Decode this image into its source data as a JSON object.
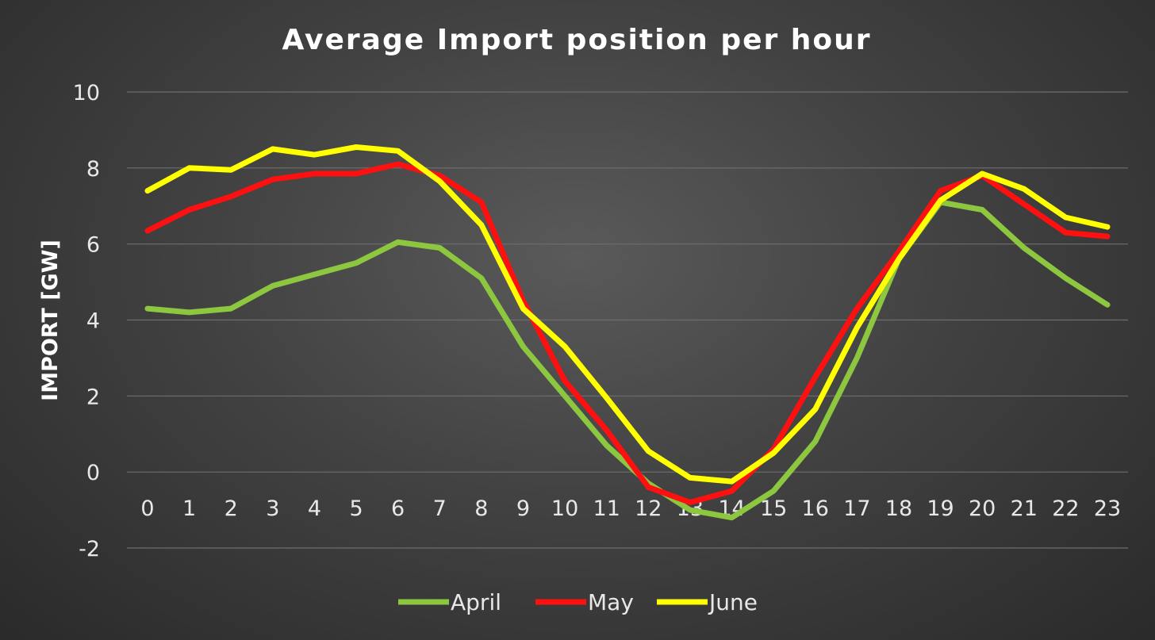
{
  "chart_data": {
    "type": "line",
    "title": "Average Import position per hour",
    "xlabel": "",
    "ylabel": "IMPORT [GW]",
    "x": [
      0,
      1,
      2,
      3,
      4,
      5,
      6,
      7,
      8,
      9,
      10,
      11,
      12,
      13,
      14,
      15,
      16,
      17,
      18,
      19,
      20,
      21,
      22,
      23
    ],
    "ylim": [
      -2,
      10
    ],
    "yticks": [
      -2,
      0,
      2,
      4,
      6,
      8,
      10
    ],
    "grid": true,
    "legend_position": "bottom",
    "series": [
      {
        "name": "April",
        "color": "#8dc63f",
        "values": [
          4.3,
          4.2,
          4.3,
          4.9,
          5.2,
          5.5,
          6.05,
          5.9,
          5.1,
          3.3,
          2.0,
          0.7,
          -0.3,
          -1.0,
          -1.2,
          -0.5,
          0.8,
          3.0,
          5.6,
          7.1,
          6.9,
          5.9,
          5.1,
          4.4
        ]
      },
      {
        "name": "May",
        "color": "#ff1010",
        "values": [
          6.35,
          6.9,
          7.25,
          7.7,
          7.85,
          7.85,
          8.1,
          7.8,
          7.1,
          4.5,
          2.4,
          1.1,
          -0.4,
          -0.8,
          -0.5,
          0.6,
          2.5,
          4.3,
          5.8,
          7.4,
          7.8,
          7.05,
          6.3,
          6.2
        ]
      },
      {
        "name": "June",
        "color": "#ffff00",
        "values": [
          7.4,
          8.0,
          7.95,
          8.5,
          8.35,
          8.55,
          8.45,
          7.65,
          6.5,
          4.3,
          3.3,
          1.95,
          0.55,
          -0.15,
          -0.25,
          0.5,
          1.65,
          3.8,
          5.6,
          7.15,
          7.85,
          7.45,
          6.7,
          6.45
        ]
      }
    ]
  }
}
